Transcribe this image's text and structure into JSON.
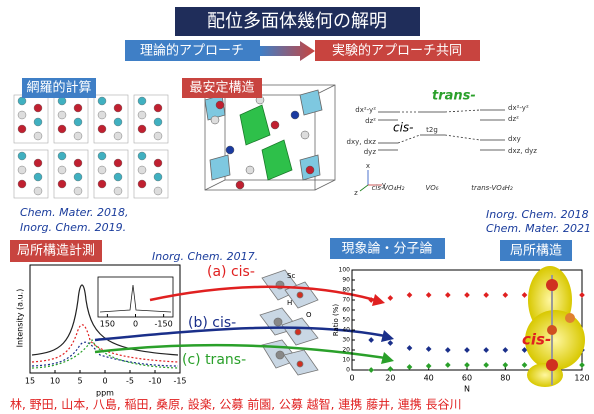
{
  "header": {
    "title": "配位多面体幾何の解明",
    "theory": "理論的アプローチ",
    "experiment": "実験的アプローチ共同"
  },
  "panels": {
    "screening": "網羅的計算",
    "stable": "最安定構造",
    "local_measure": "局所構造計測",
    "phenomenology": "現象論・分子論",
    "local_structure": "局所構造"
  },
  "citations": {
    "left": [
      "Chem. Mater. 2018,",
      "Inorg. Chem. 2019."
    ],
    "right": [
      "Inorg. Chem. 2018",
      "Chem. Mater. 2021"
    ],
    "nmr": "Inorg. Chem. 2017."
  },
  "energy_diagram": {
    "trans": "trans-",
    "cis": "cis-",
    "left_levels": [
      "dx²-y²",
      "dz²",
      "dxy, dxz",
      "dyz"
    ],
    "center_level": "t2g",
    "right_levels": [
      "dx²-y²",
      "dz²",
      "dxy",
      "dxz, dyz"
    ],
    "species": [
      "cis-VO₄H₂",
      "VO₆",
      "trans-VO₄H₂"
    ],
    "axes": [
      "x",
      "y",
      "z"
    ]
  },
  "structures": {
    "a": "(a) cis-",
    "b": "(b) cis-",
    "c": "(c) trans-",
    "atoms": [
      "Sc",
      "H",
      "O"
    ],
    "orbital": "cis-"
  },
  "nmr_plot": {
    "ylabel": "Intensity (a.u.)",
    "xlabel": "ppm",
    "xticks": [
      15,
      10,
      5,
      0,
      -5,
      -10,
      -15
    ],
    "xlim": [
      15,
      -15
    ],
    "inset_xticks": [
      150,
      0,
      -150
    ],
    "inset_xlim": [
      200,
      -200
    ]
  },
  "ratio_plot": {
    "ylabel": "Ratio (%)",
    "xlabel": "N",
    "xlim": [
      0,
      120
    ],
    "ylim": [
      0,
      100
    ],
    "xticks": [
      0,
      20,
      40,
      60,
      80,
      100,
      120
    ],
    "yticks": [
      0,
      10,
      20,
      30,
      40,
      50,
      60,
      70,
      80,
      90,
      100
    ],
    "x": [
      10,
      20,
      30,
      40,
      50,
      60,
      70,
      80,
      90,
      100,
      110,
      120
    ],
    "series": [
      {
        "color": "#e02020",
        "values": [
          70,
          72,
          75,
          75,
          75,
          75,
          75,
          75,
          75,
          75,
          75,
          75
        ]
      },
      {
        "color": "#1a2f8a",
        "values": [
          30,
          27,
          22,
          21,
          20,
          20,
          20,
          20,
          20,
          20,
          20,
          20
        ]
      },
      {
        "color": "#2aa02a",
        "values": [
          0,
          1,
          3,
          4,
          5,
          5,
          5,
          5,
          5,
          5,
          5,
          5
        ]
      }
    ]
  },
  "members": "林, 野田, 山本, 八島, 稲田, 桑原, 設楽, 公募 前園, 公募 越智, 連携 藤井, 連携 長谷川"
}
